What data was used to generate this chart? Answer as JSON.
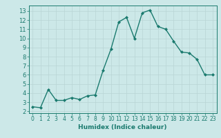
{
  "x": [
    0,
    1,
    2,
    3,
    4,
    5,
    6,
    7,
    8,
    9,
    10,
    11,
    12,
    13,
    14,
    15,
    16,
    17,
    18,
    19,
    20,
    21,
    22,
    23
  ],
  "y": [
    2.5,
    2.4,
    4.4,
    3.2,
    3.2,
    3.5,
    3.3,
    3.7,
    3.8,
    6.5,
    8.8,
    11.8,
    12.3,
    10.0,
    12.8,
    13.1,
    11.3,
    11.0,
    9.7,
    8.5,
    8.4,
    7.7,
    6.0,
    6.0
  ],
  "line_color": "#1a7a6e",
  "marker": "D",
  "marker_size": 2.0,
  "linewidth": 1.0,
  "background_color": "#cce8e8",
  "grid_color": "#b8d4d4",
  "xlabel": "Humidex (Indice chaleur)",
  "xlim": [
    -0.5,
    23.5
  ],
  "ylim": [
    1.8,
    13.6
  ],
  "yticks": [
    2,
    3,
    4,
    5,
    6,
    7,
    8,
    9,
    10,
    11,
    12,
    13
  ],
  "xticks": [
    0,
    1,
    2,
    3,
    4,
    5,
    6,
    7,
    8,
    9,
    10,
    11,
    12,
    13,
    14,
    15,
    16,
    17,
    18,
    19,
    20,
    21,
    22,
    23
  ],
  "tick_color": "#1a7a6e",
  "label_color": "#1a7a6e",
  "font_size_xlabel": 6.5,
  "font_size_yticks": 6.0,
  "font_size_xticks": 5.5
}
